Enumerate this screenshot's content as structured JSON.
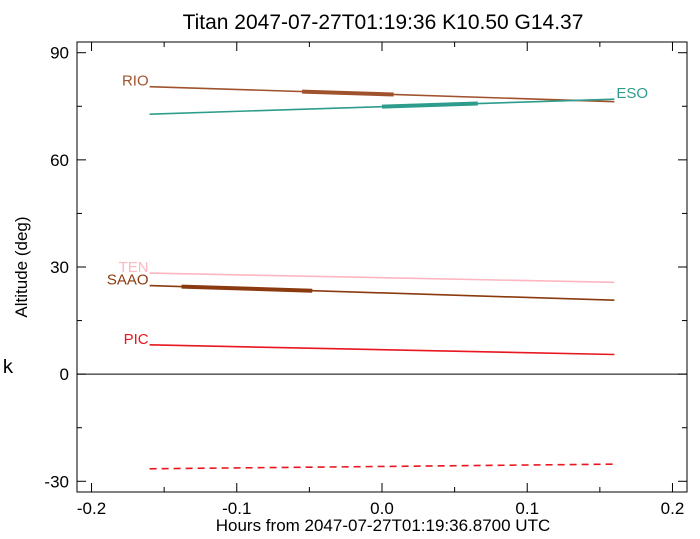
{
  "chart_data": {
    "type": "line",
    "title": "Titan 2047-07-27T01:19:36  K10.50  G14.37",
    "xlabel": "Hours from 2047-07-27T01:19:36.8700 UTC",
    "ylabel": "Altitude (deg)",
    "xlim": [
      -0.21,
      0.21
    ],
    "ylim": [
      -33,
      93
    ],
    "x_ticks": [
      -0.2,
      -0.1,
      0.0,
      0.1,
      0.2
    ],
    "x_tick_labels": [
      "-0.2",
      "-0.1",
      "0.0",
      "0.1",
      "0.2"
    ],
    "y_ticks": [
      -30,
      0,
      30,
      60,
      90
    ],
    "y_tick_labels": [
      "-30",
      "0",
      "30",
      "60",
      "90"
    ],
    "zero_line": 0,
    "grid": false,
    "side_mark": "k",
    "series": [
      {
        "name": "RIO",
        "color": "#a0522d",
        "x": [
          -0.16,
          0.16
        ],
        "y": [
          80.5,
          76.3
        ],
        "thick_x": [
          -0.055,
          0.008
        ],
        "style": "solid",
        "label_at": "start"
      },
      {
        "name": "ESO",
        "color": "#2e9c8c",
        "x": [
          -0.16,
          0.16
        ],
        "y": [
          72.8,
          77.0
        ],
        "thick_x": [
          0.0,
          0.066
        ],
        "style": "solid",
        "label_at": "end"
      },
      {
        "name": "TEN",
        "color": "#ffb6c1",
        "x": [
          -0.16,
          0.16
        ],
        "y": [
          28.3,
          25.7
        ],
        "style": "solid",
        "label_at": "start"
      },
      {
        "name": "SAAO",
        "color": "#8b3a0f",
        "x": [
          -0.16,
          0.16
        ],
        "y": [
          24.8,
          20.7
        ],
        "thick_x": [
          -0.138,
          -0.048
        ],
        "style": "solid",
        "label_at": "start"
      },
      {
        "name": "PIC",
        "color": "#e8161e",
        "x": [
          -0.16,
          0.16
        ],
        "y": [
          8.2,
          5.5
        ],
        "style": "solid",
        "label_at": "start"
      },
      {
        "name": "",
        "color": "#e8161e",
        "x": [
          -0.16,
          0.16
        ],
        "y": [
          -26.5,
          -25.2
        ],
        "style": "dashed",
        "label_at": "none"
      }
    ]
  }
}
